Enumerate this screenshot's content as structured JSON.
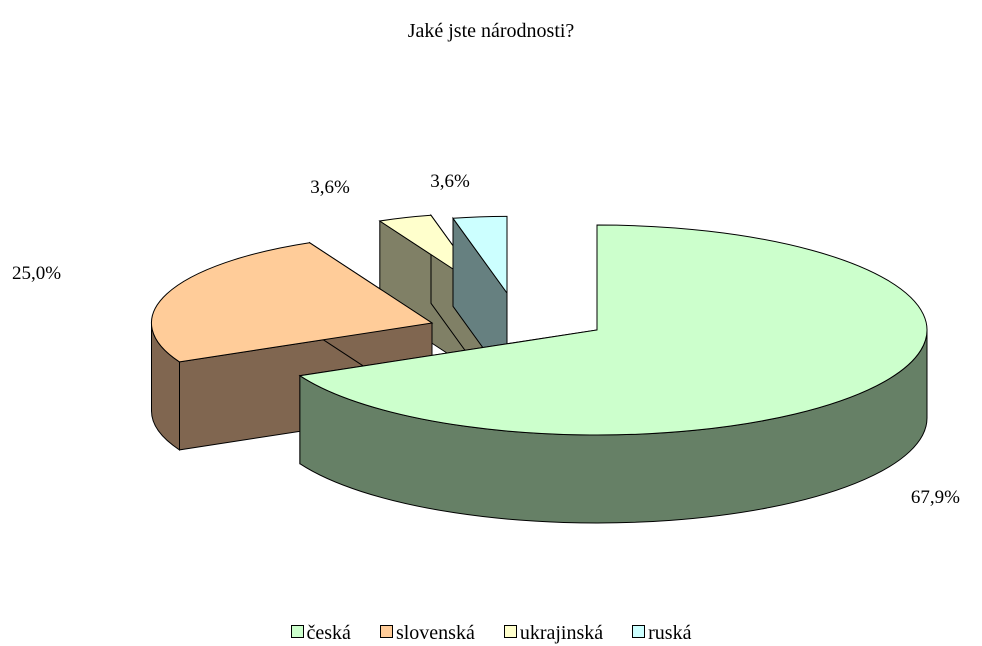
{
  "chart_data": {
    "type": "pie",
    "title": "Jaké jste národnosti?",
    "categories": [
      "česká",
      "slovenská",
      "ukrajinská",
      "ruská"
    ],
    "values": [
      67.9,
      25.0,
      3.6,
      3.6
    ],
    "data_labels": [
      "67,9%",
      "25,0%",
      "3,6%",
      "3,6%"
    ],
    "style": "3d-exploded",
    "legend_position": "bottom",
    "colors": {
      "top": [
        "#CCFFCC",
        "#FFCC99",
        "#FFFFCC",
        "#CCFFFF"
      ],
      "side": [
        "#668066",
        "#806650",
        "#808066",
        "#668080"
      ]
    }
  }
}
